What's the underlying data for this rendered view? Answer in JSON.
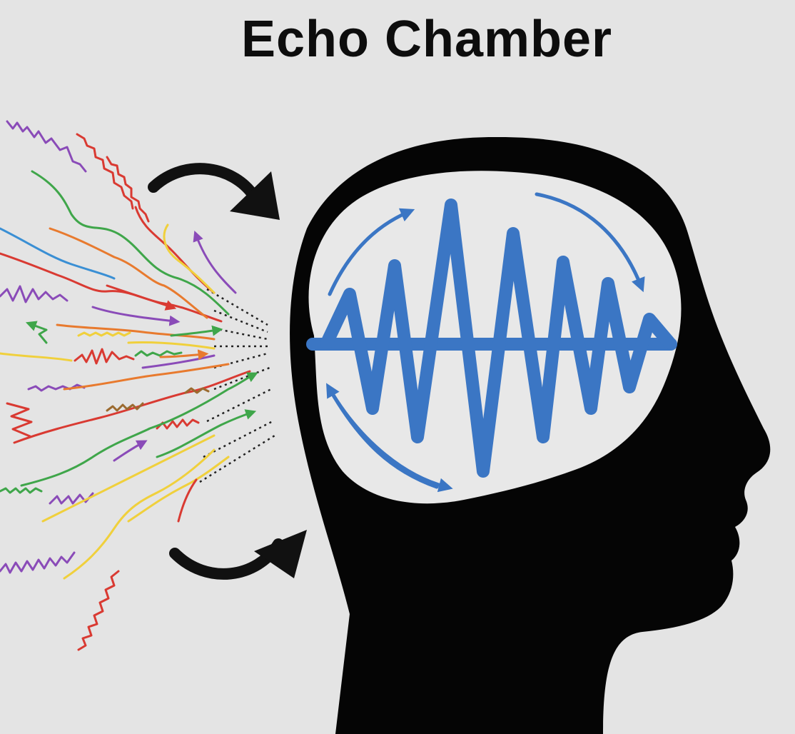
{
  "title": "Echo Chamber",
  "colors": {
    "background": "#e4e4e4",
    "head": "#050505",
    "brain": "#e8e8e8",
    "wave": "#3b76c4",
    "arrows": "#111111",
    "noise": [
      "#d93a32",
      "#3fa64a",
      "#8a4bb8",
      "#f0d03c",
      "#e87a2e",
      "#3a8fd4",
      "#9b6a2f"
    ]
  },
  "icons": {
    "head": "head-silhouette-icon",
    "incoming_arrows": "curved-arrow-icon",
    "cycle_arrows": "circular-arrow-icon",
    "wave": "sound-wave-icon",
    "noise": "squiggle-line-icon"
  }
}
